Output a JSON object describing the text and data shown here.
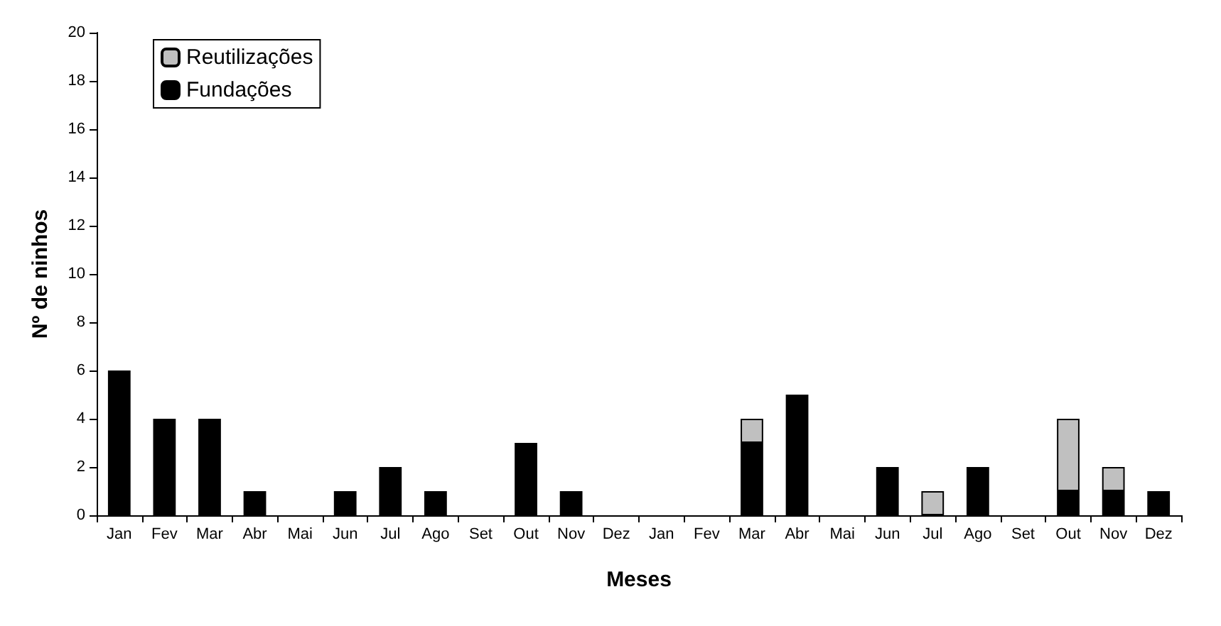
{
  "chart_data": {
    "type": "bar",
    "stacked": true,
    "xlabel": "Meses",
    "ylabel": "Nº de ninhos",
    "categories": [
      "Jan",
      "Fev",
      "Mar",
      "Abr",
      "Mai",
      "Jun",
      "Jul",
      "Ago",
      "Set",
      "Out",
      "Nov",
      "Dez",
      "Jan",
      "Fev",
      "Mar",
      "Abr",
      "Mai",
      "Jun",
      "Jul",
      "Ago",
      "Set",
      "Out",
      "Nov",
      "Dez"
    ],
    "series": [
      {
        "name": "Fundações",
        "color": "#000000",
        "values": [
          6,
          4,
          4,
          1,
          null,
          1,
          2,
          1,
          null,
          3,
          1,
          null,
          null,
          null,
          3,
          5,
          null,
          2,
          null,
          2,
          null,
          1,
          1,
          1
        ]
      },
      {
        "name": "Reutilizações",
        "color": "#c0c0c0",
        "values": [
          null,
          null,
          null,
          null,
          null,
          null,
          null,
          null,
          null,
          null,
          null,
          null,
          null,
          null,
          1,
          null,
          null,
          null,
          1,
          null,
          null,
          3,
          1,
          null
        ]
      }
    ],
    "ylim": [
      0,
      20
    ],
    "yticks": [
      0,
      2,
      4,
      6,
      8,
      10,
      12,
      14,
      16,
      18,
      20
    ],
    "grid": false,
    "legend": "top left"
  }
}
